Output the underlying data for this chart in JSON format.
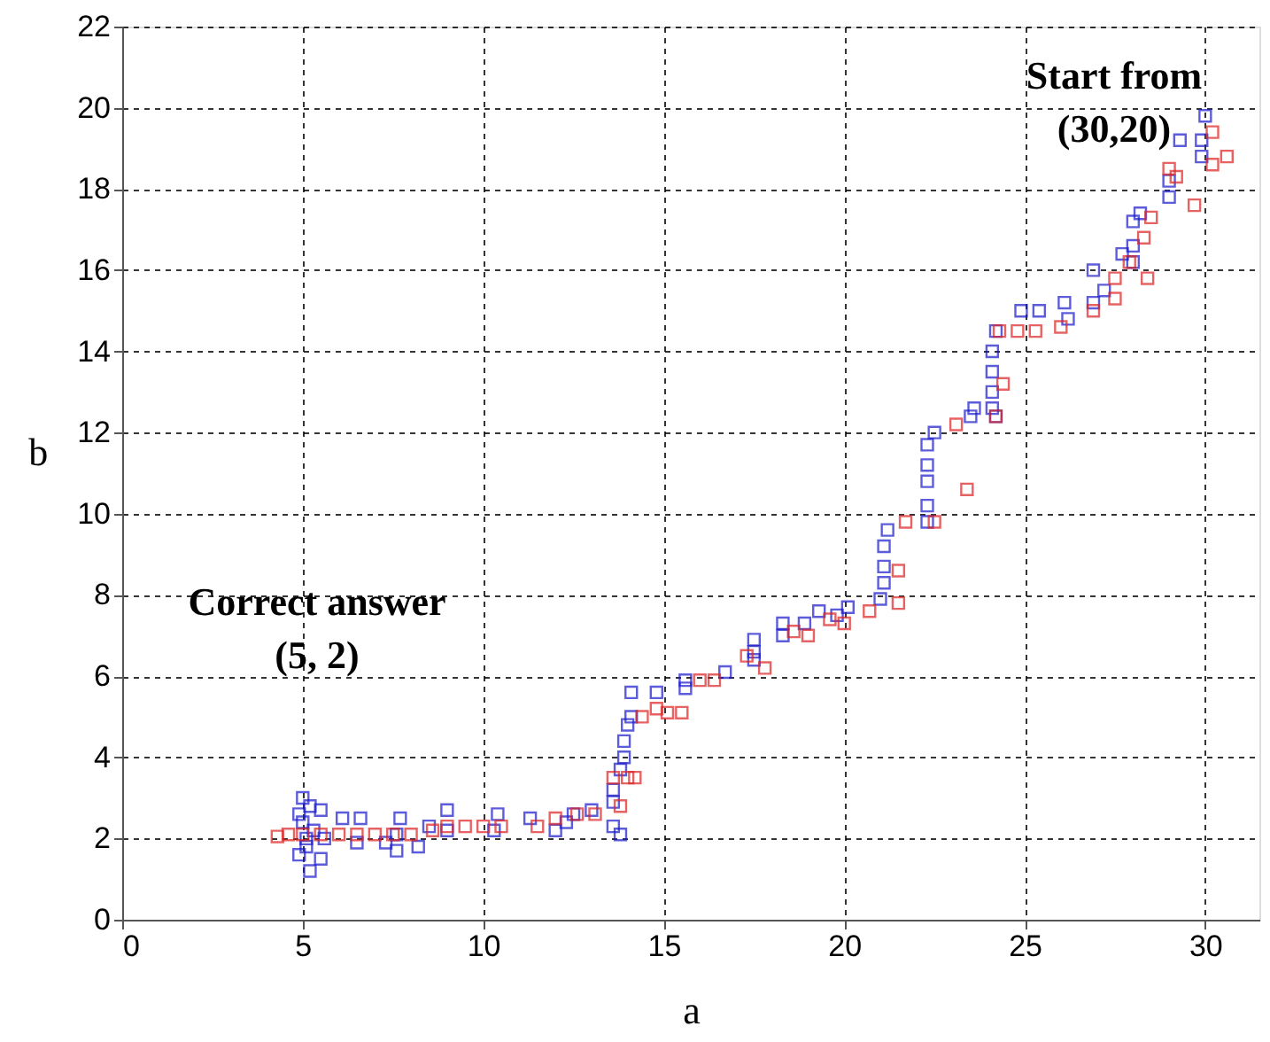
{
  "chart_data": {
    "type": "scatter",
    "xlabel": "a",
    "ylabel": "b",
    "xlim": [
      0,
      31.5
    ],
    "xticks": [
      0,
      5,
      10,
      15,
      20,
      25,
      30
    ],
    "ylim": [
      0,
      22
    ],
    "yticks": [
      0,
      2,
      4,
      6,
      8,
      10,
      12,
      14,
      16,
      18,
      20,
      22
    ],
    "grid": true,
    "marker": "square",
    "annotations": [
      "Correct answer\n(5, 2)",
      "Start from\n(30,20)"
    ],
    "series": [
      {
        "color": "#1a1acc",
        "x": [
          30,
          29.9,
          29.9,
          29.3,
          29,
          29,
          28.2,
          28,
          28,
          28,
          27.7,
          27.2,
          26.9,
          26.9,
          26.1,
          25.4,
          26.2,
          24.9,
          24.2,
          24.1,
          24.1,
          24.1,
          24.1,
          24.2,
          23.6,
          23.5,
          22.5,
          22.3,
          22.3,
          22.3,
          22.3,
          22.3,
          21.2,
          21.1,
          21.1,
          21.1,
          21,
          20.1,
          19.8,
          19.3,
          18.9,
          18.3,
          18.3,
          17.5,
          17.5,
          17.5,
          16.7,
          15.6,
          15.6,
          14.8,
          14.1,
          14.1,
          14,
          13.9,
          13.9,
          13.8,
          13.6,
          13.6,
          13.6,
          13.8,
          13,
          12.5,
          12.3,
          12,
          11.3,
          10.4,
          10.3,
          9,
          9,
          8.5,
          8.2,
          7.7,
          7.6,
          7.6,
          7.3,
          6.6,
          6.5,
          6.1,
          5.6,
          5.5,
          5.5,
          5.3,
          5.2,
          5.2,
          5.1,
          5,
          5,
          4.9,
          4.9,
          5.1
        ],
        "values": [
          19.8,
          19.2,
          18.8,
          19.2,
          18.2,
          17.8,
          17.4,
          17.2,
          16.6,
          16.2,
          16.4,
          15.5,
          16,
          15.2,
          15.2,
          15,
          14.8,
          15,
          14.5,
          14,
          13.5,
          13,
          12.6,
          12.4,
          12.6,
          12.4,
          12,
          11.7,
          11.2,
          10.8,
          10.2,
          9.8,
          9.6,
          9.2,
          8.7,
          8.3,
          7.9,
          7.7,
          7.5,
          7.6,
          7.3,
          7.3,
          7,
          6.9,
          6.6,
          6.4,
          6.1,
          5.9,
          5.7,
          5.6,
          5.6,
          5,
          4.8,
          4.4,
          4,
          3.7,
          3.2,
          2.9,
          2.3,
          2.1,
          2.7,
          2.6,
          2.4,
          2.2,
          2.5,
          2.6,
          2.2,
          2.7,
          2.2,
          2.3,
          1.8,
          2.5,
          2.1,
          1.7,
          1.9,
          2.5,
          1.9,
          2.5,
          2,
          2.7,
          1.5,
          2.2,
          2.8,
          1.2,
          1.8,
          2.4,
          3,
          2.6,
          1.6,
          2
        ]
      },
      {
        "color": "#dd2222",
        "x": [
          30.6,
          30.2,
          30.2,
          29.7,
          29.2,
          29,
          28.5,
          28.3,
          27.9,
          27.5,
          28.4,
          26.9,
          27.5,
          26,
          25.3,
          24.8,
          24.3,
          24.4,
          24.2,
          23.4,
          23.1,
          22.5,
          21.7,
          21.5,
          21.5,
          20.7,
          20,
          19.6,
          19,
          18.6,
          17.8,
          17.3,
          16.4,
          16,
          15.5,
          15.1,
          14.8,
          14.4,
          14.2,
          14,
          13.6,
          13.8,
          13.1,
          12.6,
          12,
          11.5,
          10.5,
          10,
          9.5,
          9,
          8.6,
          8,
          7.5,
          7,
          6.5,
          6,
          5.5,
          5,
          4.6,
          4.3
        ],
        "values": [
          18.8,
          19.4,
          18.6,
          17.6,
          18.3,
          18.5,
          17.3,
          16.8,
          16.2,
          15.8,
          15.8,
          15,
          15.3,
          14.6,
          14.5,
          14.5,
          14.5,
          13.2,
          12.4,
          10.6,
          12.2,
          9.8,
          9.8,
          8.6,
          7.8,
          7.6,
          7.3,
          7.4,
          7,
          7.1,
          6.2,
          6.5,
          5.9,
          5.9,
          5.1,
          5.1,
          5.2,
          5,
          3.5,
          3.5,
          3.5,
          2.8,
          2.6,
          2.6,
          2.5,
          2.3,
          2.3,
          2.3,
          2.3,
          2.3,
          2.2,
          2.1,
          2.1,
          2.1,
          2.1,
          2.1,
          2.1,
          2.1,
          2.1,
          2.05
        ]
      }
    ]
  }
}
